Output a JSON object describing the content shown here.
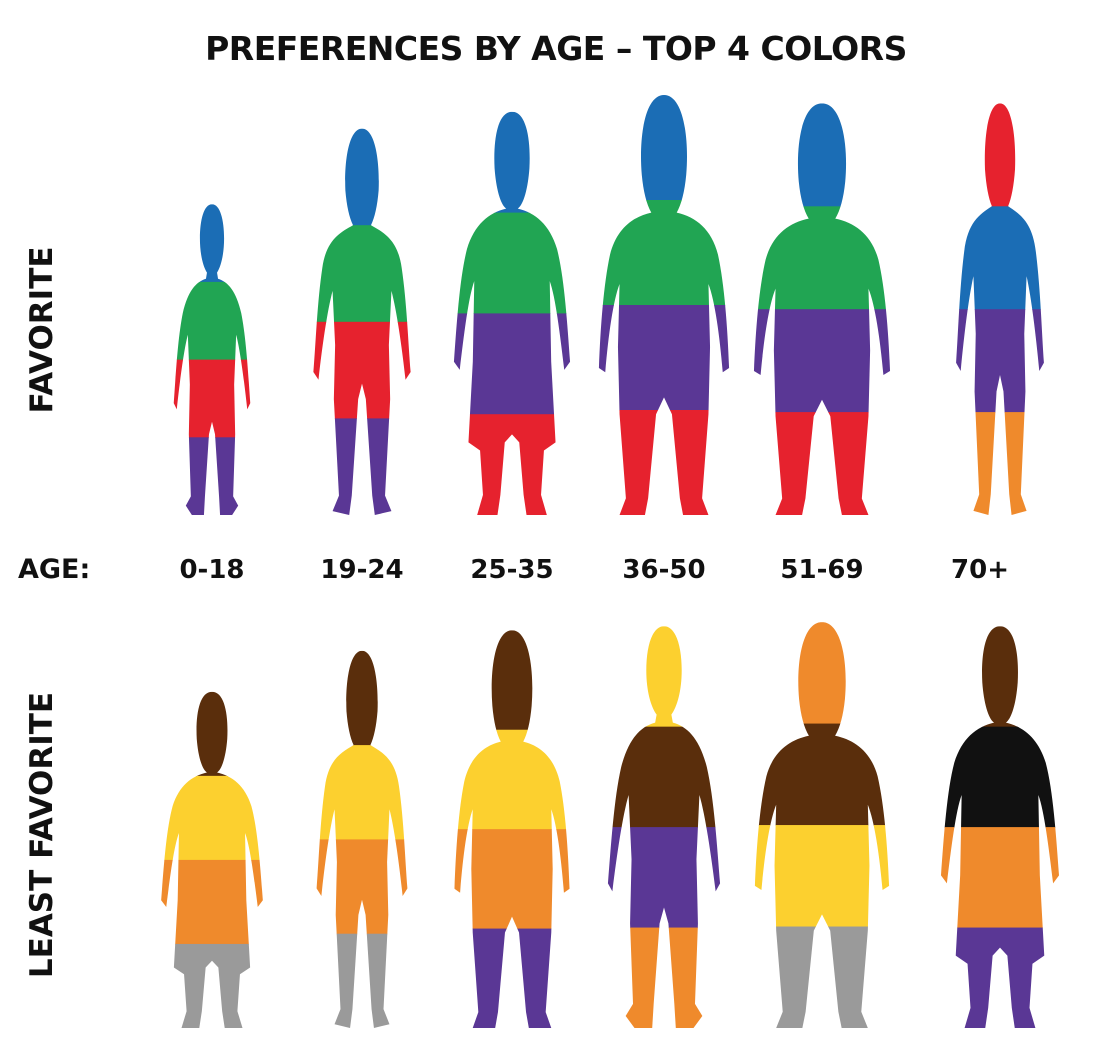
{
  "chart_data": {
    "type": "other",
    "title": "PREFERENCES BY AGE – TOP 4 COLORS",
    "age_axis_label": "AGE:",
    "age_groups": [
      "0-18",
      "19-24",
      "25-35",
      "36-50",
      "51-69",
      "70+"
    ],
    "rows": [
      {
        "label": "FAVORITE",
        "ranking_order": "top to bottom",
        "by_age": [
          [
            "blue",
            "green",
            "red",
            "purple"
          ],
          [
            "blue",
            "green",
            "red",
            "purple"
          ],
          [
            "blue",
            "green",
            "purple",
            "red"
          ],
          [
            "blue",
            "green",
            "purple",
            "red"
          ],
          [
            "blue",
            "green",
            "purple",
            "red"
          ],
          [
            "red",
            "blue",
            "purple",
            "orange"
          ]
        ]
      },
      {
        "label": "LEAST FAVORITE",
        "ranking_order": "top to bottom",
        "by_age": [
          [
            "brown",
            "yellow",
            "orange",
            "gray"
          ],
          [
            "brown",
            "yellow",
            "orange",
            "gray"
          ],
          [
            "brown",
            "yellow",
            "orange",
            "purple"
          ],
          [
            "yellow",
            "brown",
            "purple",
            "orange"
          ],
          [
            "orange",
            "brown",
            "yellow",
            "gray"
          ],
          [
            "brown",
            "black",
            "orange",
            "purple"
          ]
        ]
      }
    ],
    "color_hex": {
      "blue": "#1B6DB5",
      "green": "#21A553",
      "red": "#E6222E",
      "purple": "#5A3795",
      "orange": "#EF8A2C",
      "brown": "#5A2E0C",
      "yellow": "#FCD02F",
      "gray": "#9A9A9A",
      "black": "#111111"
    }
  }
}
